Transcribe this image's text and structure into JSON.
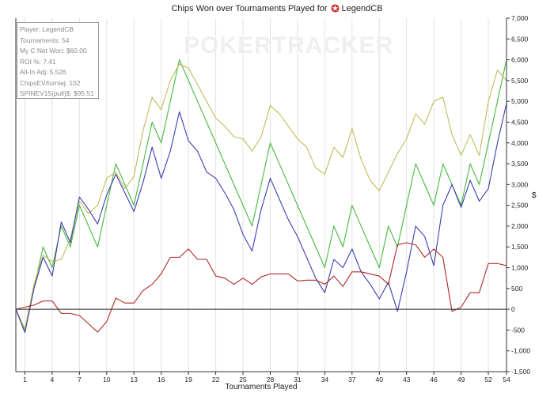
{
  "title": {
    "text": "Chips Won over Tournaments Played for",
    "player_name": "LegendCB",
    "icon": "pokerstars-star-icon",
    "icon_color": "#d0312d"
  },
  "watermark": "POKERTRACKER",
  "info_box": [
    "Player: LegendCB",
    "Tournaments: 54",
    "My C Net Won: $60.00",
    "ROI %: 7.41",
    "All-In Adj: 5,526",
    "ChipsEV/turniej: 102",
    "SPINEV15(pull)$: $95.51"
  ],
  "chart_data": {
    "type": "line",
    "title": "Chips Won over Tournaments Played for LegendCB",
    "xlabel": "Tournaments Played",
    "ylabel": "$",
    "xlim": [
      0,
      54
    ],
    "ylim": [
      -1500,
      7000
    ],
    "x_ticks": [
      1,
      4,
      7,
      10,
      13,
      16,
      19,
      22,
      25,
      28,
      31,
      34,
      37,
      40,
      43,
      46,
      49,
      52,
      54
    ],
    "y_ticks": [
      -1500,
      -1000,
      -500,
      0,
      500,
      1000,
      1500,
      2000,
      2500,
      3000,
      3500,
      4000,
      4500,
      5000,
      5500,
      6000,
      6500,
      7000
    ],
    "y_tick_labels": [
      "-1,500",
      "-1,000",
      "-500",
      "0",
      "500",
      "1,000",
      "1,500",
      "2,000",
      "2,500",
      "3,000",
      "3,500",
      "4,000",
      "4,500",
      "5,000",
      "5,500",
      "6,000",
      "6,500",
      "7,000"
    ],
    "grid": "vertical",
    "zero_line": true,
    "series": [
      {
        "color": "#44b83c",
        "values": [
          0,
          -500,
          500,
          1500,
          1000,
          2000,
          1500,
          2500,
          2000,
          1500,
          2500,
          3500,
          3000,
          2500,
          3500,
          4500,
          4000,
          5000,
          6000,
          5500,
          5000,
          4500,
          4000,
          3500,
          3000,
          2500,
          2000,
          3000,
          4000,
          3500,
          3000,
          2500,
          2000,
          1500,
          1000,
          2000,
          1500,
          2500,
          2000,
          1500,
          1000,
          2000,
          1500,
          2500,
          3500,
          3000,
          2500,
          3500,
          3000,
          2500,
          3500,
          3000,
          4000,
          5000,
          6000
        ]
      },
      {
        "color": "#c0bc58",
        "values": [
          0,
          -470,
          600,
          1300,
          1150,
          1200,
          1700,
          2600,
          2300,
          2500,
          3150,
          3300,
          2900,
          3200,
          4300,
          5100,
          4800,
          5500,
          5900,
          5800,
          5400,
          5000,
          4600,
          4400,
          4150,
          4100,
          3800,
          4150,
          4900,
          4700,
          4400,
          4100,
          3900,
          3400,
          3250,
          3900,
          3650,
          4350,
          3600,
          3100,
          2850,
          3300,
          3750,
          4100,
          4700,
          4450,
          5000,
          5100,
          4200,
          3700,
          4200,
          3700,
          5000,
          5750,
          5500
        ]
      },
      {
        "color": "#3c3cb0",
        "values": [
          0,
          -560,
          500,
          1250,
          800,
          2100,
          1600,
          2700,
          2400,
          2050,
          2750,
          3250,
          2800,
          2350,
          3050,
          3900,
          3150,
          3800,
          4750,
          4050,
          3800,
          3300,
          3150,
          2800,
          2400,
          1800,
          1400,
          2400,
          3150,
          2650,
          2150,
          1750,
          1250,
          750,
          400,
          1200,
          1000,
          1450,
          900,
          600,
          250,
          650,
          -50,
          900,
          2000,
          1750,
          1050,
          2500,
          3000,
          2450,
          3100,
          2600,
          2900,
          4000,
          4950
        ]
      },
      {
        "color": "#b02828",
        "values": [
          0,
          50,
          100,
          200,
          200,
          -100,
          -100,
          -150,
          -350,
          -550,
          -300,
          270,
          150,
          150,
          450,
          600,
          850,
          1250,
          1250,
          1450,
          1200,
          1200,
          800,
          750,
          600,
          750,
          600,
          780,
          850,
          850,
          850,
          680,
          700,
          700,
          600,
          800,
          550,
          900,
          900,
          850,
          800,
          600,
          1550,
          1600,
          1550,
          1250,
          1450,
          1250,
          -50,
          50,
          400,
          400,
          1100,
          1100,
          1050
        ]
      }
    ]
  }
}
